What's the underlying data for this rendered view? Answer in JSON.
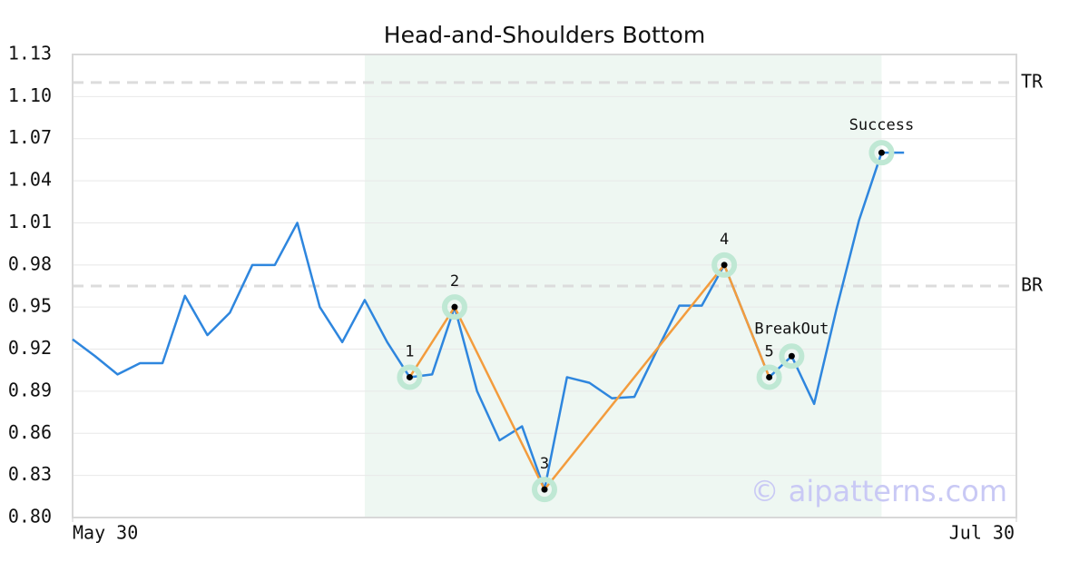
{
  "chart_data": {
    "type": "line",
    "title": "Head-and-Shoulders Bottom",
    "x": [
      0,
      1,
      2,
      3,
      4,
      5,
      6,
      7,
      8,
      9,
      10,
      11,
      12,
      13,
      14,
      15,
      16,
      17,
      18,
      19,
      20,
      21,
      22,
      23,
      24,
      25,
      26,
      27,
      28,
      29,
      30,
      31,
      32,
      33,
      34,
      35,
      36,
      37
    ],
    "values": [
      0.927,
      0.915,
      0.902,
      0.91,
      0.91,
      0.958,
      0.93,
      0.946,
      0.98,
      0.98,
      1.01,
      0.95,
      0.925,
      0.955,
      0.925,
      0.9,
      0.902,
      0.95,
      0.89,
      0.855,
      0.865,
      0.82,
      0.9,
      0.896,
      0.885,
      0.886,
      0.919,
      0.951,
      0.951,
      0.98,
      0.94,
      0.9,
      0.915,
      0.881,
      0.949,
      1.012,
      1.06,
      1.06
    ],
    "color": "#2e86de",
    "xlim": [
      0,
      42
    ],
    "xticks": [
      {
        "value": 0,
        "label": "May 30"
      },
      {
        "value": 42,
        "label": "Jul 30"
      }
    ],
    "ylim": [
      0.8,
      1.13
    ],
    "yticks": [
      {
        "value": 0.8,
        "label": "0.80"
      },
      0.83,
      0.86,
      0.89,
      0.92,
      0.95,
      0.98,
      1.01,
      1.04,
      1.07,
      {
        "value": 1.1,
        "label": "1.10"
      },
      1.13
    ],
    "grid": true,
    "highlight_x": [
      13,
      36
    ],
    "highlight_color": "#eef7f2",
    "pattern": {
      "x": [
        15,
        17,
        21,
        29,
        31
      ],
      "values": [
        0.9,
        0.95,
        0.82,
        0.98,
        0.9
      ],
      "color": "#f39c3d"
    },
    "points": [
      {
        "label": "1",
        "x": 15,
        "y": 0.9
      },
      {
        "label": "2",
        "x": 17,
        "y": 0.95
      },
      {
        "label": "3",
        "x": 21,
        "y": 0.82
      },
      {
        "label": "4",
        "x": 29,
        "y": 0.98
      },
      {
        "label": "5",
        "x": 31,
        "y": 0.9
      },
      {
        "label": "BreakOut",
        "x": 32,
        "y": 0.915
      },
      {
        "label": "Success",
        "x": 36,
        "y": 1.06
      }
    ],
    "levels": [
      {
        "label": "TR",
        "value": 1.11
      },
      {
        "label": "BR",
        "value": 0.965
      }
    ],
    "watermark": "© aipatterns.com"
  }
}
